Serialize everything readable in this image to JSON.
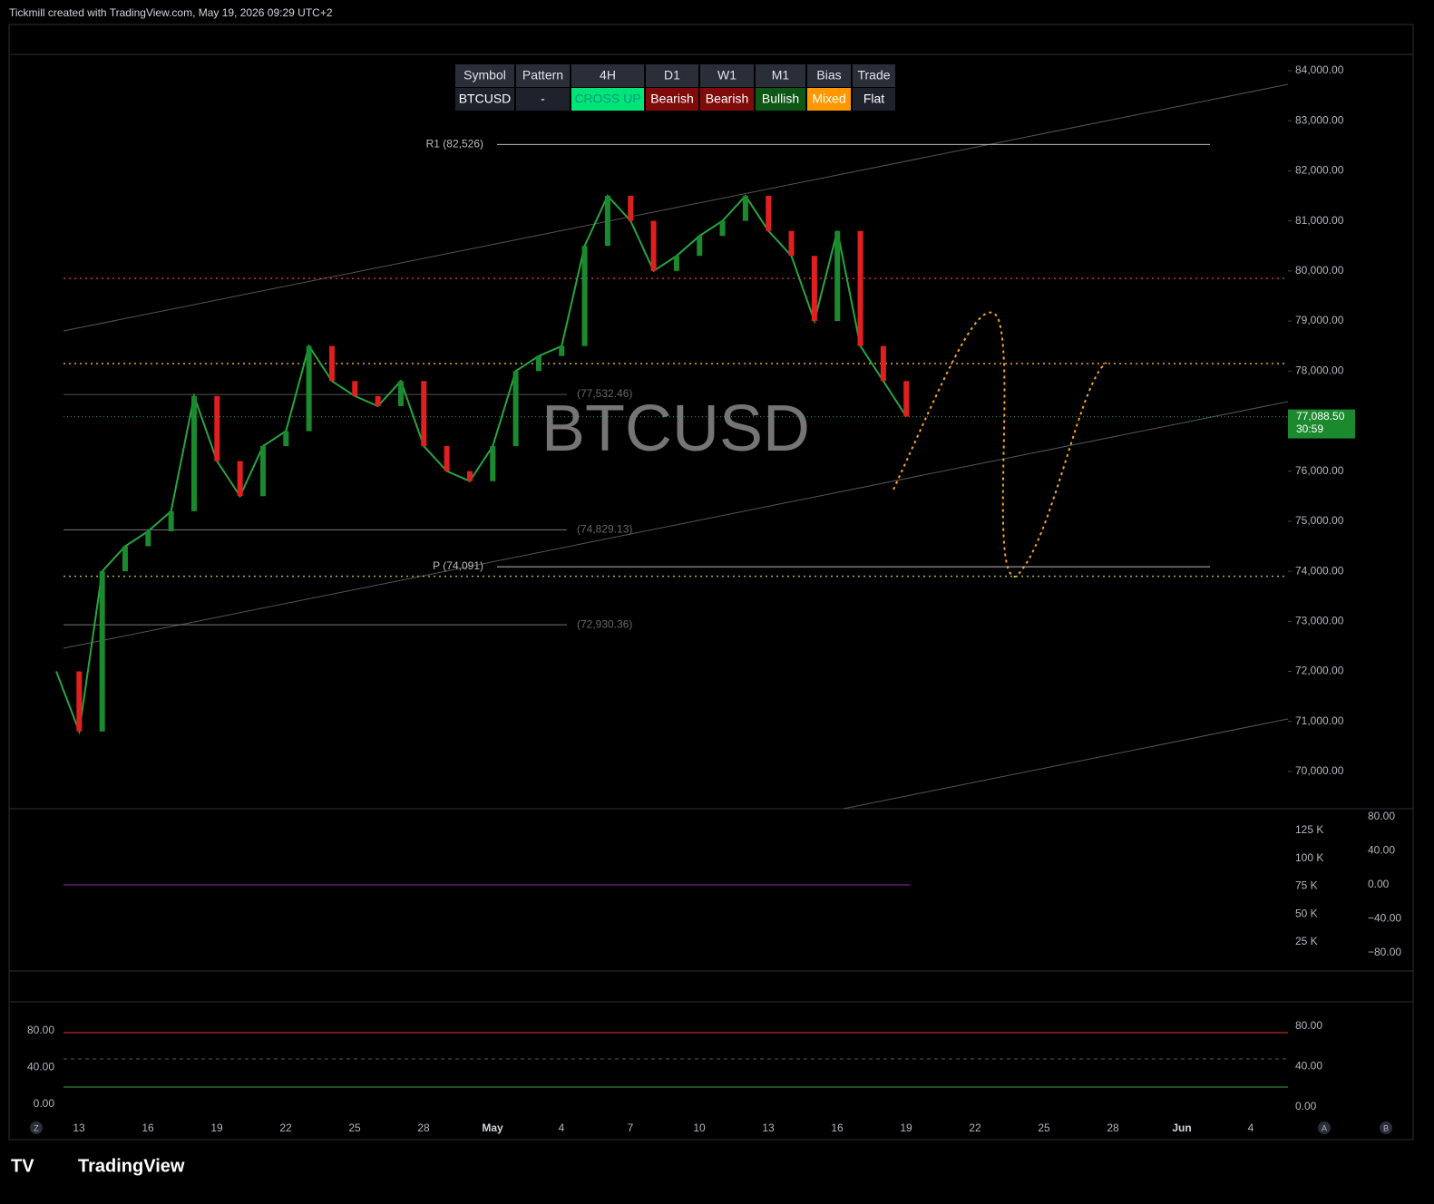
{
  "header": {
    "title": "Tickmill created with TradingView.com, May 19, 2026 09:29 UTC+2"
  },
  "table": {
    "columns": [
      "Symbol",
      "Pattern",
      "4H",
      "D1",
      "W1",
      "M1",
      "Bias",
      "Trade"
    ],
    "row": [
      "BTCUSD",
      "-",
      "CROSS UP",
      "Bearish",
      "Bearish",
      "Bullish",
      "Mixed",
      "Flat"
    ],
    "row_colors": [
      "#1e222d",
      "#1e222d",
      "#00e676",
      "#7f0b0b",
      "#7f0b0b",
      "#0f5716",
      "#ff9800",
      "#1e222d"
    ]
  },
  "chart_data": {
    "type": "line",
    "watermark": "BTCUSD",
    "values": [
      72000,
      70800,
      74000,
      74500,
      74800,
      75200,
      77500,
      76200,
      75500,
      76500,
      76800,
      78500,
      77800,
      77500,
      77300,
      77800,
      76500,
      76000,
      75800,
      76500,
      78000,
      78300,
      78500,
      80500,
      81500,
      81000,
      80000,
      80300,
      80700,
      81000,
      81500,
      80800,
      80300,
      79000,
      80800,
      78500,
      77800,
      77088.5
    ],
    "color": "#26a641",
    "ylim": [
      69000,
      84600
    ],
    "yticks": [
      {
        "value": 84000,
        "label": "84,000.00"
      },
      {
        "value": 83000,
        "label": "83,000.00"
      },
      {
        "value": 82000,
        "label": "82,000.00"
      },
      {
        "value": 81000,
        "label": "81,000.00"
      },
      {
        "value": 80000,
        "label": "80,000.00"
      },
      {
        "value": 79000,
        "label": "79,000.00"
      },
      {
        "value": 78000,
        "label": "78,000.00"
      },
      {
        "value": 76000,
        "label": "76,000.00"
      },
      {
        "value": 75000,
        "label": "75,000.00"
      },
      {
        "value": 74000,
        "label": "74,000.00"
      },
      {
        "value": 73000,
        "label": "73,000.00"
      },
      {
        "value": 72000,
        "label": "72,000.00"
      },
      {
        "value": 71000,
        "label": "71,000.00"
      },
      {
        "value": 70000,
        "label": "70,000.00"
      }
    ],
    "last_price": {
      "value": 77088.5,
      "label": "77,088.50",
      "countdown": "30:59"
    },
    "levels": [
      {
        "value": 82526,
        "label": "R1 (82,526)",
        "color": "#bbbbbb",
        "dash": false
      },
      {
        "value": 74091,
        "label": "P (74,091)",
        "color": "#bbbbbb",
        "dash": false
      },
      {
        "value": 77532.46,
        "label": "(77,532.46)",
        "color": "#555",
        "dash": false
      },
      {
        "value": 74829.13,
        "label": "(74,829.13)",
        "color": "#777",
        "dash": false
      },
      {
        "value": 72930.36,
        "label": "(72,930.36)",
        "color": "#777",
        "dash": false
      },
      {
        "value": 79850,
        "color": "#d32f2f",
        "dash": true
      },
      {
        "value": 78150,
        "color": "#f5a623",
        "dash": true
      },
      {
        "value": 73900,
        "color": "#8bc34a",
        "dash": true
      }
    ],
    "xticks": [
      "13",
      "16",
      "19",
      "22",
      "25",
      "28",
      "May",
      "4",
      "7",
      "10",
      "13",
      "16",
      "19",
      "22",
      "25",
      "28",
      "Jun",
      "4"
    ]
  },
  "volume": {
    "yticks": [
      {
        "value": 125000,
        "label": "125 K"
      },
      {
        "value": 100000,
        "label": "100 K"
      },
      {
        "value": 75000,
        "label": "75 K"
      },
      {
        "value": 50000,
        "label": "50 K"
      },
      {
        "value": 25000,
        "label": "25 K"
      }
    ],
    "osc_ticks": [
      {
        "value": 80,
        "label": "80.00"
      },
      {
        "value": 40,
        "label": "40.00"
      },
      {
        "value": 0,
        "label": "0.00"
      },
      {
        "value": -40,
        "label": "−40.00"
      },
      {
        "value": -80,
        "label": "−80.00"
      }
    ]
  },
  "stoch": {
    "yticks": [
      {
        "value": 80,
        "label": "80.00"
      },
      {
        "value": 40,
        "label": "40.00"
      },
      {
        "value": 0,
        "label": "0.00"
      }
    ]
  },
  "footer": {
    "brand": "TradingView",
    "icons": [
      "Z",
      "A",
      "B"
    ]
  }
}
